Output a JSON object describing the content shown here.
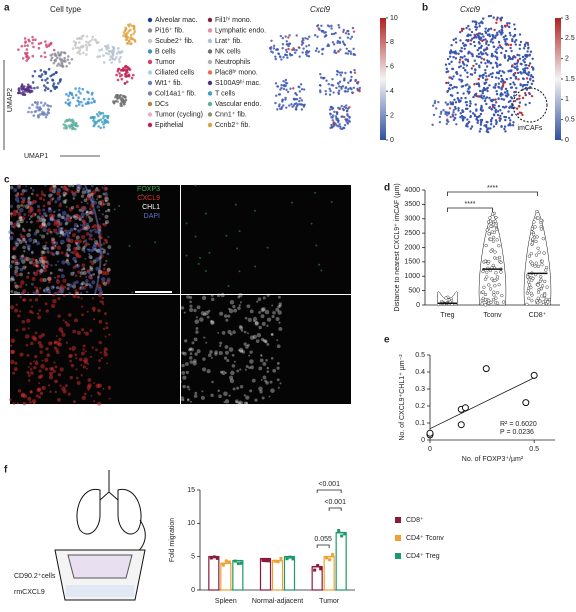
{
  "panel_labels": [
    "a",
    "b",
    "c",
    "d",
    "e",
    "f"
  ],
  "umap": {
    "title": "Cell type",
    "y_label": "UMAP2",
    "x_label": "UMAP1",
    "legend": [
      {
        "name": "Alveolar mac.",
        "color": "#1f3f8f"
      },
      {
        "name": "Pi16⁺ fib.",
        "color": "#8a8a9a"
      },
      {
        "name": "Scube2⁺ fib.",
        "color": "#c6c6c6"
      },
      {
        "name": "B cells",
        "color": "#3a8fd0"
      },
      {
        "name": "Tumor",
        "color": "#d04070"
      },
      {
        "name": "Ciliated cells",
        "color": "#aad0e8"
      },
      {
        "name": "Wt1⁺ fib.",
        "color": "#6a7fbf"
      },
      {
        "name": "Col14a1⁺ fib.",
        "color": "#8080a0"
      },
      {
        "name": "DCs",
        "color": "#b08040"
      },
      {
        "name": "Tumor (cycling)",
        "color": "#e8b0c0"
      },
      {
        "name": "Epithelial",
        "color": "#c02050"
      },
      {
        "name": "Fil1ʰⁱ mono.",
        "color": "#802040"
      },
      {
        "name": "Lymphatic endo.",
        "color": "#e090a0"
      },
      {
        "name": "Lrat⁺ fib.",
        "color": "#b0c0d0"
      },
      {
        "name": "NK cells",
        "color": "#707070"
      },
      {
        "name": "Neutrophils",
        "color": "#b0b0b0"
      },
      {
        "name": "Plac8ʰⁱ mono.",
        "color": "#e07050"
      },
      {
        "name": "S100A9ʰⁱ mac.",
        "color": "#503080"
      },
      {
        "name": "T cells",
        "color": "#40a0c0"
      },
      {
        "name": "Vascular endo.",
        "color": "#60b0a0"
      },
      {
        "name": "Cnn1⁺ fib.",
        "color": "#909070"
      },
      {
        "name": "Ccnb2⁺ fib.",
        "color": "#e0a040"
      }
    ],
    "expr_title": "Cxcl9",
    "expr_lim": [
      0,
      10
    ],
    "expr_ticks": [
      0,
      2,
      4,
      6,
      8,
      10
    ],
    "b_title": "Cxcl9",
    "b_lim": [
      0,
      3
    ],
    "b_ticks": [
      0,
      0.5,
      1,
      1.5,
      2,
      2.5,
      3
    ],
    "annotation": "imCAFs"
  },
  "microscopy": {
    "channels": [
      {
        "name": "FOXP3",
        "color": "#3cb04a"
      },
      {
        "name": "CXCL9",
        "color": "#e03030"
      },
      {
        "name": "CHL1",
        "color": "#ffffff"
      },
      {
        "name": "DAPI",
        "color": "#6070d0"
      }
    ]
  },
  "schematic": {
    "labels": [
      "CD90.2⁺cells",
      "rmCXCL9"
    ]
  },
  "chart_data": [
    {
      "type": "violin",
      "y_label": "Distance to nearest CXCL9⁺ imCAF (µm)",
      "categories": [
        "Treg",
        "Tconv",
        "CD8⁺"
      ],
      "values": [
        60,
        1250,
        1100
      ],
      "max": [
        300,
        3200,
        3300
      ],
      "ylim": [
        0,
        4000
      ],
      "yticks": [
        0,
        500,
        1000,
        1500,
        2000,
        2500,
        3000,
        3500,
        4000
      ],
      "annotations": [
        "****",
        "****"
      ]
    },
    {
      "type": "scatter",
      "y_label": "No. of CXCL9⁺CHL1⁺ µm⁻²",
      "x_label": "No. of FOXP3⁺/µm²",
      "x": [
        0,
        0,
        0.15,
        0.15,
        0.17,
        0.27,
        0.46,
        0.5
      ],
      "y": [
        0.03,
        0.04,
        0.09,
        0.18,
        0.19,
        0.42,
        0.22,
        0.38
      ],
      "xlim": [
        0,
        0.6
      ],
      "xticks": [
        0,
        0.5
      ],
      "ylim": [
        0,
        0.5
      ],
      "yticks": [
        0,
        0.1,
        0.2,
        0.3,
        0.4,
        0.5
      ],
      "annotations": [
        "R² = 0.6020",
        "P = 0.0236"
      ]
    },
    {
      "type": "bar",
      "y_label": "Fold migration",
      "categories": [
        "Spleen",
        "Normal-adjacent",
        "Tumor"
      ],
      "series": [
        {
          "name": "CD8⁺",
          "color": "#8b1a3a",
          "values": [
            5.0,
            4.7,
            3.5
          ]
        },
        {
          "name": "CD4⁺ Tconv",
          "color": "#f0a030",
          "values": [
            4.0,
            4.4,
            5.0
          ]
        },
        {
          "name": "CD4⁺ Treg",
          "color": "#1a9a6a",
          "values": [
            4.4,
            5.0,
            8.6
          ]
        }
      ],
      "ylim": [
        0,
        15
      ],
      "yticks": [
        0,
        5,
        10,
        15
      ],
      "annotations": [
        "0.055",
        "<0.001",
        "<0.001"
      ]
    }
  ]
}
